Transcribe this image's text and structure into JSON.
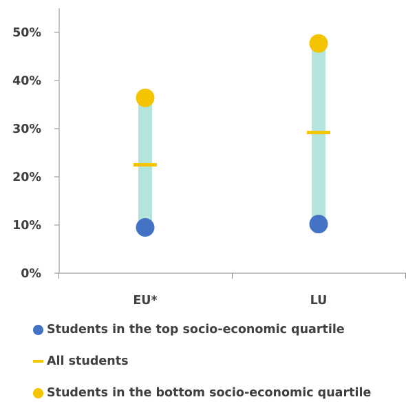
{
  "chart_data": {
    "type": "range",
    "categories": [
      "EU*",
      "LU"
    ],
    "series": [
      {
        "name": "Students in the top socio-economic quartile",
        "marker": "dot",
        "color": "#4472c4",
        "values": [
          9.5,
          10.2
        ]
      },
      {
        "name": "All students",
        "marker": "dash",
        "color": "#f5c400",
        "values": [
          22.5,
          29.2
        ]
      },
      {
        "name": "Students in the bottom socio-economic quartile",
        "marker": "dot",
        "color": "#f5c400",
        "values": [
          36.4,
          47.7
        ]
      }
    ],
    "range_bar_color": "#b3e5dc",
    "ylim": [
      0,
      50
    ],
    "yticks": [
      0,
      10,
      20,
      30,
      40,
      50
    ],
    "ytick_labels": [
      "0%",
      "10%",
      "20%",
      "30%",
      "40%",
      "50%"
    ],
    "grid": false,
    "legend_position": "bottom-left",
    "title": "",
    "xlabel": "",
    "ylabel": ""
  }
}
